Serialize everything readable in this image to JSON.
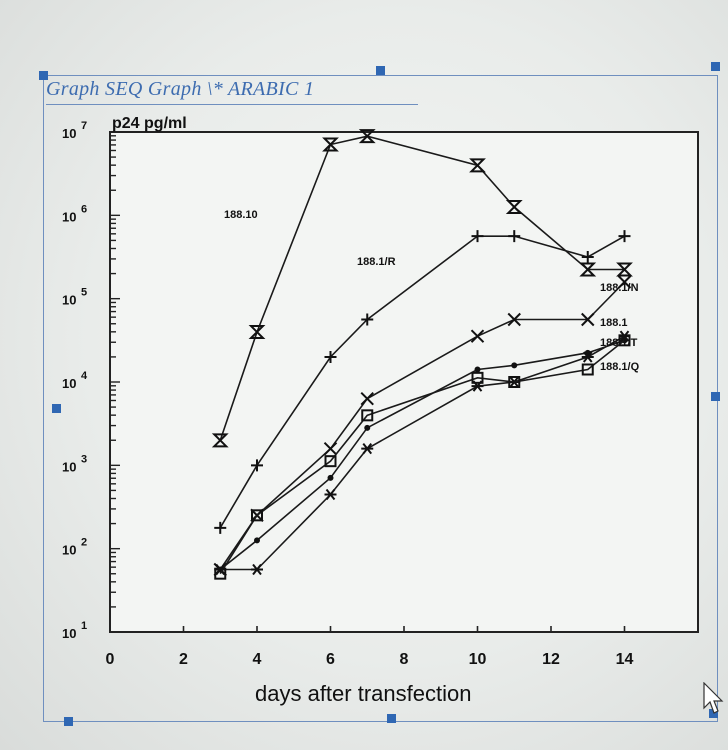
{
  "caption": "Graph  SEQ Graph \\* ARABIC 1",
  "chart_data": {
    "type": "line",
    "ylabel": "p24 pg/ml",
    "xlabel": "days after transfection",
    "y_scale": "log",
    "xlim": [
      0,
      16
    ],
    "x_ticks": [
      "0",
      "2",
      "4",
      "6",
      "8",
      "10",
      "12",
      "14"
    ],
    "ylim": [
      1,
      7
    ],
    "y_ticks": [
      {
        "base": "10",
        "exp": "1"
      },
      {
        "base": "10",
        "exp": "2"
      },
      {
        "base": "10",
        "exp": "3"
      },
      {
        "base": "10",
        "exp": "4"
      },
      {
        "base": "10",
        "exp": "5"
      },
      {
        "base": "10",
        "exp": "6"
      },
      {
        "base": "10",
        "exp": "7"
      }
    ],
    "series": [
      {
        "name": "188.10",
        "marker": "hourglass",
        "x": [
          3,
          4,
          6,
          7,
          10,
          11,
          13,
          14
        ],
        "y": [
          3.3,
          4.6,
          6.85,
          6.95,
          6.6,
          6.1,
          5.35,
          5.35
        ]
      },
      {
        "name": "188.1/R",
        "marker": "plus",
        "x": [
          3,
          4,
          6,
          7,
          10,
          11,
          13,
          14
        ],
        "y": [
          2.25,
          3.0,
          4.3,
          4.75,
          5.75,
          5.75,
          5.5,
          5.75
        ]
      },
      {
        "name": "188.1/N",
        "marker": "x",
        "x": [
          3,
          4,
          6,
          7,
          10,
          11,
          13,
          14
        ],
        "y": [
          1.75,
          2.4,
          3.2,
          3.8,
          4.55,
          4.75,
          4.75,
          5.2
        ]
      },
      {
        "name": "188.1",
        "marker": "dot",
        "x": [
          3,
          4,
          6,
          7,
          10,
          11,
          13,
          14
        ],
        "y": [
          1.75,
          2.1,
          2.85,
          3.45,
          4.15,
          4.2,
          4.35,
          4.5
        ]
      },
      {
        "name": "188.1/T",
        "marker": "asterisk",
        "x": [
          3,
          4,
          6,
          7,
          10,
          11,
          13,
          14
        ],
        "y": [
          1.75,
          1.75,
          2.65,
          3.2,
          3.95,
          4.0,
          4.3,
          4.55
        ]
      },
      {
        "name": "188.1/Q",
        "marker": "square",
        "x": [
          3,
          4,
          6,
          7,
          10,
          11,
          13,
          14
        ],
        "y": [
          1.7,
          2.4,
          3.05,
          3.6,
          4.05,
          4.0,
          4.15,
          4.5
        ]
      }
    ],
    "grid": false,
    "legend": "series labels placed directly beside lines; right side labels for lower series"
  }
}
